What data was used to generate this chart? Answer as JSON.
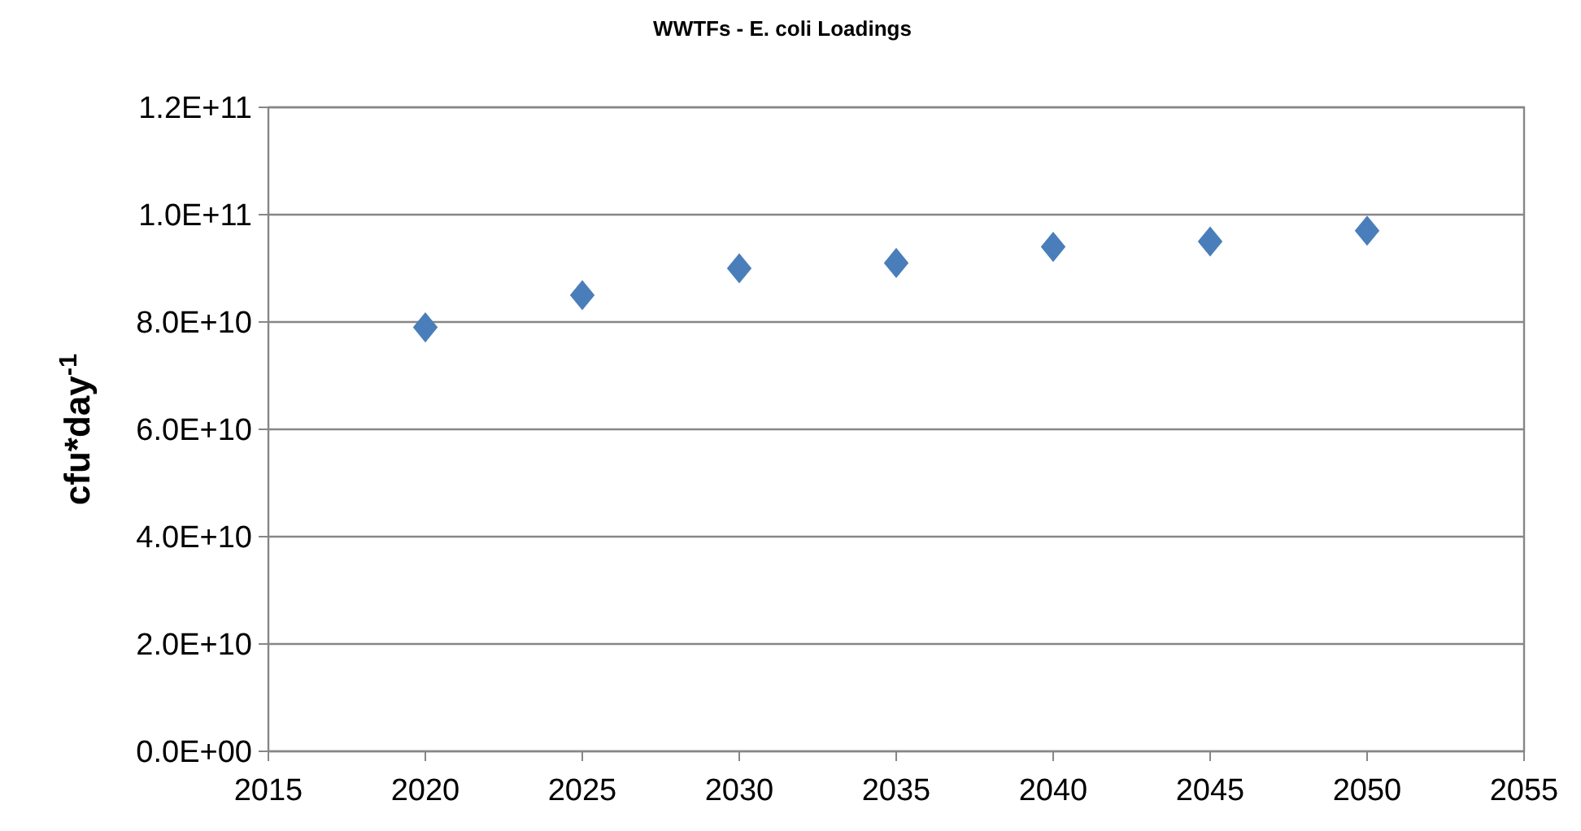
{
  "chart_data": {
    "type": "scatter",
    "title": "WWTFs - E. coli Loadings",
    "ylabel": "cfu*day$^{-1}$",
    "x": [
      2020,
      2025,
      2030,
      2035,
      2040,
      2045,
      2050
    ],
    "series": [
      {
        "color": "#4a7ebb",
        "values": [
          79000000000.0,
          85000000000.0,
          90000000000.0,
          91000000000.0,
          94000000000.0,
          95000000000.0,
          97000000000.0
        ]
      }
    ],
    "xlim": [
      2015,
      2055
    ],
    "xticks": [
      2015,
      2020,
      2025,
      2030,
      2035,
      2040,
      2045,
      2050,
      2055
    ],
    "ylim": [
      0,
      120000000000.0
    ],
    "yticks": [
      {
        "value": 0,
        "label": "0.0E+00"
      },
      {
        "value": 20000000000.0,
        "label": "2.0E+10"
      },
      {
        "value": 40000000000.0,
        "label": "4.0E+10"
      },
      {
        "value": 60000000000.0,
        "label": "6.0E+10"
      },
      {
        "value": 80000000000.0,
        "label": "8.0E+10"
      },
      {
        "value": 100000000000.0,
        "label": "1.0E+11"
      },
      {
        "value": 120000000000.0,
        "label": "1.2E+11"
      }
    ],
    "grid": "y",
    "marker": "diamond"
  }
}
